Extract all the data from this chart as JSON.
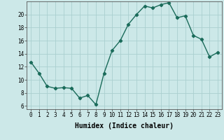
{
  "x": [
    0,
    1,
    2,
    3,
    4,
    5,
    6,
    7,
    8,
    9,
    10,
    11,
    12,
    13,
    14,
    15,
    16,
    17,
    18,
    19,
    20,
    21,
    22,
    23
  ],
  "y": [
    12.7,
    11.0,
    9.0,
    8.7,
    8.8,
    8.7,
    7.2,
    7.6,
    6.2,
    11.0,
    14.5,
    16.0,
    18.5,
    20.0,
    21.3,
    21.0,
    21.5,
    21.8,
    19.5,
    19.8,
    16.8,
    16.2,
    13.5,
    14.2
  ],
  "line_color": "#1a6b5a",
  "marker": "D",
  "markersize": 2.2,
  "linewidth": 1.0,
  "bg_color": "#cce8e8",
  "grid_color": "#aacfcf",
  "xlabel": "Humidex (Indice chaleur)",
  "xlabel_fontsize": 7,
  "ylabel_ticks": [
    6,
    8,
    10,
    12,
    14,
    16,
    18,
    20
  ],
  "ylim": [
    5.5,
    22.0
  ],
  "xlim": [
    -0.5,
    23.5
  ],
  "xtick_labels": [
    "0",
    "1",
    "2",
    "3",
    "4",
    "5",
    "6",
    "7",
    "8",
    "9",
    "10",
    "11",
    "12",
    "13",
    "14",
    "15",
    "16",
    "17",
    "18",
    "19",
    "20",
    "21",
    "22",
    "23"
  ],
  "tick_fontsize": 5.5
}
